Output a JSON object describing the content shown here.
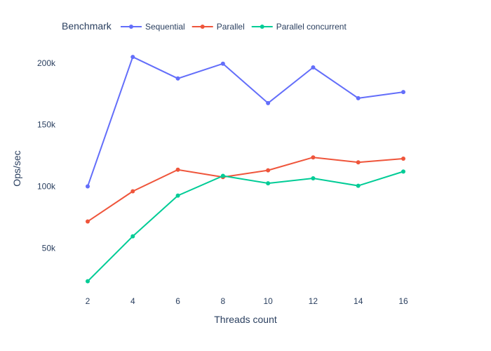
{
  "chart_data": {
    "type": "line",
    "xlabel": "Threads count",
    "ylabel": "Ops/sec",
    "x": [
      2,
      4,
      6,
      8,
      10,
      12,
      14,
      16
    ],
    "x_ticks": [
      {
        "value": 2,
        "label": "2"
      },
      {
        "value": 4,
        "label": "4"
      },
      {
        "value": 6,
        "label": "6"
      },
      {
        "value": 8,
        "label": "8"
      },
      {
        "value": 10,
        "label": "10"
      },
      {
        "value": 12,
        "label": "12"
      },
      {
        "value": 14,
        "label": "14"
      },
      {
        "value": 16,
        "label": "16"
      }
    ],
    "y_ticks": [
      {
        "value": 50000,
        "label": "50k"
      },
      {
        "value": 100000,
        "label": "100k"
      },
      {
        "value": 150000,
        "label": "150k"
      },
      {
        "value": 200000,
        "label": "200k"
      }
    ],
    "xlim": [
      0.6,
      17.4
    ],
    "ylim": [
      12000,
      217000
    ],
    "grid": false,
    "legend": {
      "title": "Benchmark",
      "placement": "top-left",
      "orientation": "horizontal"
    },
    "series": [
      {
        "name": "Sequential",
        "color": "#636efa",
        "values": [
          100000,
          205000,
          187500,
          199500,
          167500,
          196500,
          171500,
          176500
        ]
      },
      {
        "name": "Parallel",
        "color": "#ef553b",
        "values": [
          71500,
          96000,
          113500,
          107500,
          113000,
          123500,
          119500,
          122500
        ]
      },
      {
        "name": "Parallel concurrent",
        "color": "#00cc96",
        "values": [
          23000,
          59500,
          92500,
          108500,
          102500,
          106500,
          100500,
          112000
        ]
      }
    ]
  }
}
